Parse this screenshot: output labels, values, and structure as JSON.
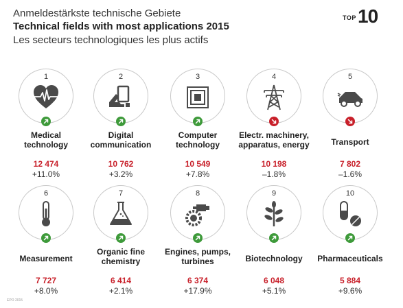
{
  "header": {
    "title_de": "Anmeldestärkste technische Gebiete",
    "title_en": "Technical fields with most applications 2015",
    "title_fr": "Les secteurs technologiques les plus actifs",
    "badge_top": "TOP",
    "badge_num": "10"
  },
  "colors": {
    "up": "#3e9a3a",
    "down": "#c8202a",
    "count": "#c8202a",
    "icon": "#4a4a4a"
  },
  "items": [
    {
      "rank": "1",
      "name_l1": "Medical",
      "name_l2": "technology",
      "count": "12 474",
      "change": "+11.0%",
      "trend": "up",
      "icon": "heart-ecg-icon"
    },
    {
      "rank": "2",
      "name_l1": "Digital",
      "name_l2": "communication",
      "count": "10 762",
      "change": "+3.2%",
      "trend": "up",
      "icon": "hand-tablet-icon"
    },
    {
      "rank": "3",
      "name_l1": "Computer",
      "name_l2": "technology",
      "count": "10 549",
      "change": "+7.8%",
      "trend": "up",
      "icon": "microchip-icon"
    },
    {
      "rank": "4",
      "name_l1": "Electr. machinery,",
      "name_l2": "apparatus, energy",
      "count": "10 198",
      "change": "–1.8%",
      "trend": "down",
      "icon": "power-pylon-icon"
    },
    {
      "rank": "5",
      "name_l1": "Transport",
      "name_l2": "",
      "count": "7 802",
      "change": "–1.6%",
      "trend": "down",
      "icon": "car-icon"
    },
    {
      "rank": "6",
      "name_l1": "Measurement",
      "name_l2": "",
      "count": "7 727",
      "change": "+8.0%",
      "trend": "up",
      "icon": "thermometer-icon"
    },
    {
      "rank": "7",
      "name_l1": "Organic fine",
      "name_l2": "chemistry",
      "count": "6 414",
      "change": "+2.1%",
      "trend": "up",
      "icon": "flask-icon"
    },
    {
      "rank": "8",
      "name_l1": "Engines, pumps,",
      "name_l2": "turbines",
      "count": "6 374",
      "change": "+17.9%",
      "trend": "up",
      "icon": "engine-gear-icon"
    },
    {
      "rank": "9",
      "name_l1": "Biotechnology",
      "name_l2": "",
      "count": "6 048",
      "change": "+5.1%",
      "trend": "up",
      "icon": "plant-icon"
    },
    {
      "rank": "10",
      "name_l1": "Pharmaceuticals",
      "name_l2": "",
      "count": "5 884",
      "change": "+9.6%",
      "trend": "up",
      "icon": "pills-icon"
    }
  ],
  "source": "EPO 2015"
}
